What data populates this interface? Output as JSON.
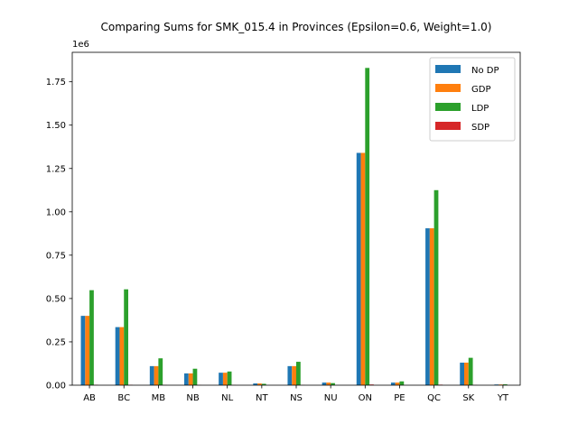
{
  "chart_data": {
    "type": "bar",
    "title": "Comparing Sums for SMK_015.4 in Provinces (Epsilon=0.6, Weight=1.0)",
    "xlabel": "",
    "ylabel": "",
    "scale_label": "1e6",
    "ylim": [
      0,
      1.92
    ],
    "yticks": [
      0.0,
      0.25,
      0.5,
      0.75,
      1.0,
      1.25,
      1.5,
      1.75
    ],
    "ytick_labels": [
      "0.00",
      "0.25",
      "0.50",
      "0.75",
      "1.00",
      "1.25",
      "1.50",
      "1.75"
    ],
    "categories": [
      "AB",
      "BC",
      "MB",
      "NB",
      "NL",
      "NT",
      "NS",
      "NU",
      "ON",
      "PE",
      "QC",
      "SK",
      "YT"
    ],
    "legend_position": "top-right",
    "grid": false,
    "series": [
      {
        "name": "No DP",
        "color": "#1f77b4",
        "values": [
          0.4,
          0.335,
          0.11,
          0.068,
          0.072,
          0.01,
          0.11,
          0.015,
          1.34,
          0.015,
          0.905,
          0.13,
          0.004
        ]
      },
      {
        "name": "GDP",
        "color": "#ff7f0e",
        "values": [
          0.4,
          0.335,
          0.11,
          0.068,
          0.072,
          0.01,
          0.11,
          0.015,
          1.34,
          0.015,
          0.905,
          0.13,
          0.004
        ]
      },
      {
        "name": "LDP",
        "color": "#2ca02c",
        "values": [
          0.548,
          0.553,
          0.155,
          0.095,
          0.079,
          0.008,
          0.135,
          0.012,
          1.83,
          0.022,
          1.125,
          0.158,
          0.005
        ]
      },
      {
        "name": "SDP",
        "color": "#d62728",
        "values": [
          0.002,
          0.002,
          0.001,
          0.001,
          0.001,
          0.0,
          0.001,
          0.0,
          0.004,
          0.0,
          0.003,
          0.001,
          0.0
        ]
      }
    ]
  }
}
